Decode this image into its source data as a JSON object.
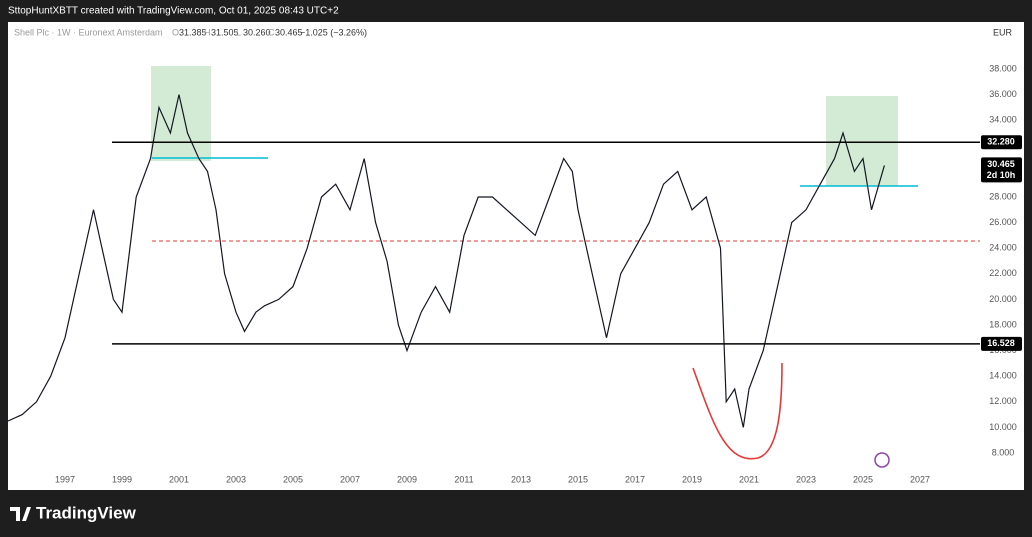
{
  "chart_data": {
    "type": "line",
    "title": "SttopHuntXBTT created with TradingView.com, Oct 01, 2025 08:43 UTC+2",
    "symbol": "Shell Plc · 1W · Euronext Amsterdam",
    "ohlc": [
      {
        "label": "O",
        "value": "31.385"
      },
      {
        "label": "H",
        "value": "31.505"
      },
      {
        "label": "L",
        "value": "30.260"
      },
      {
        "label": "C",
        "value": "30.465"
      }
    ],
    "change": "−1.025 (−3.26%)",
    "currency": "EUR",
    "brand": "TradingView",
    "x": [
      1995.0,
      1995.5,
      1996,
      1996.5,
      1997,
      1997.5,
      1998,
      1998.3,
      1998.7,
      1999,
      1999.5,
      2000,
      2000.3,
      2000.7,
      2001,
      2001.3,
      2001.7,
      2002,
      2002.3,
      2002.6,
      2003,
      2003.3,
      2003.7,
      2004,
      2004.5,
      2005,
      2005.5,
      2006,
      2006.5,
      2007,
      2007.5,
      2007.9,
      2008.3,
      2008.7,
      2009,
      2009.5,
      2010,
      2010.5,
      2011,
      2011.5,
      2012,
      2012.5,
      2013,
      2013.5,
      2014,
      2014.5,
      2014.8,
      2015,
      2015.5,
      2016,
      2016.5,
      2017,
      2017.5,
      2018,
      2018.5,
      2019,
      2019.5,
      2020,
      2020.2,
      2020.5,
      2020.8,
      2021,
      2021.5,
      2022,
      2022.5,
      2023,
      2023.5,
      2024,
      2024.3,
      2024.7,
      2025,
      2025.3,
      2025.75
    ],
    "series": [
      {
        "name": "Shell Plc",
        "color": "#131722",
        "values": [
          10.5,
          11,
          12,
          14,
          17,
          22,
          27,
          24,
          20,
          19,
          28,
          31,
          35,
          33,
          36,
          33,
          31,
          30,
          27,
          22,
          19,
          17.5,
          19,
          19.5,
          20,
          21,
          24,
          28,
          29,
          27,
          31,
          26,
          23,
          18,
          16,
          19,
          21,
          19,
          25,
          28,
          28,
          27,
          26,
          25,
          28,
          31,
          30,
          27,
          22,
          17,
          22,
          24,
          26,
          29,
          30,
          27,
          28,
          24,
          12,
          13,
          10,
          13,
          16,
          21,
          26,
          27,
          29,
          31,
          33,
          30,
          31,
          27,
          30.465
        ]
      }
    ],
    "xlim": [
      1995.0,
      2028.93
    ],
    "ylim": [
      5.11,
      41.67
    ],
    "xticks": [
      1997,
      1999,
      2001,
      2003,
      2005,
      2007,
      2009,
      2011,
      2013,
      2015,
      2017,
      2019,
      2021,
      2023,
      2025,
      2027
    ],
    "yticks": [
      {
        "value": 8,
        "label": "8.000"
      },
      {
        "value": 10,
        "label": "10.000"
      },
      {
        "value": 12,
        "label": "12.000"
      },
      {
        "value": 14,
        "label": "14.000"
      },
      {
        "value": 16,
        "label": "16.000"
      },
      {
        "value": 18,
        "label": "18.000"
      },
      {
        "value": 20,
        "label": "20.000"
      },
      {
        "value": 22,
        "label": "22.000"
      },
      {
        "value": 24,
        "label": "24.000"
      },
      {
        "value": 26,
        "label": "26.000"
      },
      {
        "value": 28,
        "label": "28.000"
      },
      {
        "value": 30,
        "label": "30.000"
      },
      {
        "value": 32,
        "label": "32.000"
      },
      {
        "value": 34,
        "label": "34.000"
      },
      {
        "value": 36,
        "label": "36.000"
      },
      {
        "value": 38,
        "label": "38.000"
      }
    ],
    "levels": [
      {
        "value": 32.28,
        "label": "32.280"
      },
      {
        "value": 16.528,
        "label": "16.528"
      }
    ],
    "last_price": {
      "value": 30.465,
      "label": "30.465",
      "countdown": "2d 10h"
    }
  }
}
